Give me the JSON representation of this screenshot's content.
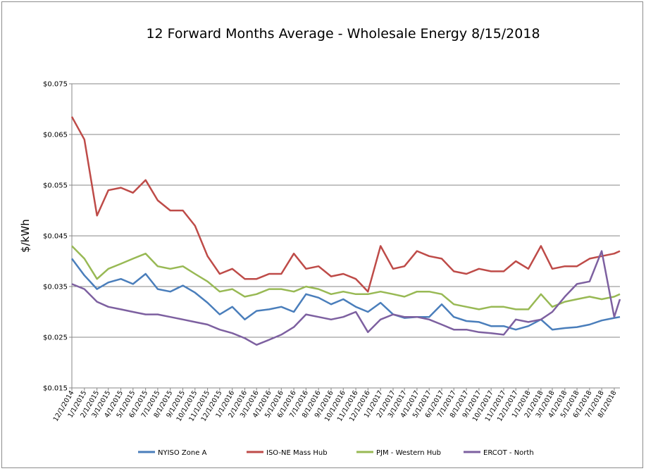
{
  "chart_data": {
    "type": "line",
    "title": "12 Forward Months Average - Wholesale Energy 8/15/2018",
    "ylabel": "$/kWh",
    "xlabel": "",
    "ylim": [
      0.015,
      0.075
    ],
    "yticks": [
      0.075,
      0.065,
      0.055,
      0.045,
      0.035,
      0.025,
      0.015
    ],
    "ytick_labels": [
      "$0.075",
      "$0.065",
      "$0.055",
      "$0.045",
      "$0.035",
      "$0.025",
      "$0.015"
    ],
    "xlim": [
      "2014-12-01",
      "2018-08-15"
    ],
    "xtick_labels": [
      "12/1/2014",
      "1/1/2015",
      "2/1/2015",
      "3/1/2015",
      "4/1/2015",
      "5/1/2015",
      "6/1/2015",
      "7/1/2015",
      "8/1/2015",
      "9/1/2015",
      "10/1/2015",
      "11/1/2015",
      "12/1/2015",
      "1/1/2016",
      "2/1/2016",
      "3/1/2016",
      "4/1/2016",
      "5/1/2016",
      "6/1/2016",
      "7/1/2016",
      "8/1/2016",
      "9/1/2016",
      "10/1/2016",
      "11/1/2016",
      "12/1/2016",
      "1/1/2017",
      "2/1/2017",
      "3/1/2017",
      "4/1/2017",
      "5/1/2017",
      "6/1/2017",
      "7/1/2017",
      "8/1/2017",
      "9/1/2017",
      "10/1/2017",
      "11/1/2017",
      "12/1/2017",
      "1/1/2018",
      "2/1/2018",
      "3/1/2018",
      "4/1/2018",
      "5/1/2018",
      "6/1/2018",
      "7/1/2018",
      "8/1/2018"
    ],
    "x": [
      "2014-12-01",
      "2015-01-01",
      "2015-02-01",
      "2015-03-01",
      "2015-04-01",
      "2015-05-01",
      "2015-06-01",
      "2015-07-01",
      "2015-08-01",
      "2015-09-01",
      "2015-10-01",
      "2015-11-01",
      "2015-12-01",
      "2016-01-01",
      "2016-02-01",
      "2016-03-01",
      "2016-04-01",
      "2016-05-01",
      "2016-06-01",
      "2016-07-01",
      "2016-08-01",
      "2016-09-01",
      "2016-10-01",
      "2016-11-01",
      "2016-12-01",
      "2017-01-01",
      "2017-02-01",
      "2017-03-01",
      "2017-04-01",
      "2017-05-01",
      "2017-06-01",
      "2017-07-01",
      "2017-08-01",
      "2017-09-01",
      "2017-10-01",
      "2017-11-01",
      "2017-12-01",
      "2018-01-01",
      "2018-02-01",
      "2018-03-01",
      "2018-04-01",
      "2018-05-01",
      "2018-06-01",
      "2018-07-01",
      "2018-08-01",
      "2018-08-15"
    ],
    "series": [
      {
        "name": "NYISO Zone A",
        "color": "#4a7ebb",
        "values": [
          0.0405,
          0.0372,
          0.0345,
          0.0358,
          0.0365,
          0.0355,
          0.0375,
          0.0345,
          0.034,
          0.0352,
          0.0338,
          0.0318,
          0.0295,
          0.031,
          0.0285,
          0.0302,
          0.0305,
          0.031,
          0.03,
          0.0335,
          0.0328,
          0.0315,
          0.0325,
          0.031,
          0.03,
          0.0318,
          0.0295,
          0.0288,
          0.029,
          0.029,
          0.0315,
          0.029,
          0.0282,
          0.028,
          0.0272,
          0.0272,
          0.0265,
          0.0272,
          0.0285,
          0.0265,
          0.0268,
          0.027,
          0.0275,
          0.0283,
          0.0288,
          0.029
        ]
      },
      {
        "name": "ISO-NE Mass Hub",
        "color": "#be4b48",
        "values": [
          0.0685,
          0.064,
          0.049,
          0.054,
          0.0545,
          0.0535,
          0.056,
          0.052,
          0.05,
          0.05,
          0.047,
          0.041,
          0.0375,
          0.0385,
          0.0365,
          0.0365,
          0.0375,
          0.0375,
          0.0415,
          0.0385,
          0.039,
          0.037,
          0.0375,
          0.0365,
          0.034,
          0.043,
          0.0385,
          0.039,
          0.042,
          0.041,
          0.0405,
          0.038,
          0.0375,
          0.0385,
          0.038,
          0.038,
          0.04,
          0.0385,
          0.043,
          0.0385,
          0.039,
          0.039,
          0.0405,
          0.041,
          0.0415,
          0.042
        ]
      },
      {
        "name": "PJM - Western Hub",
        "color": "#98b954",
        "values": [
          0.043,
          0.0405,
          0.0365,
          0.0385,
          0.0395,
          0.0405,
          0.0415,
          0.039,
          0.0385,
          0.039,
          0.0375,
          0.036,
          0.034,
          0.0345,
          0.033,
          0.0335,
          0.0345,
          0.0345,
          0.034,
          0.035,
          0.0345,
          0.0335,
          0.034,
          0.0335,
          0.0335,
          0.034,
          0.0335,
          0.033,
          0.034,
          0.034,
          0.0335,
          0.0315,
          0.031,
          0.0305,
          0.031,
          0.031,
          0.0305,
          0.0305,
          0.0335,
          0.031,
          0.032,
          0.0325,
          0.033,
          0.0325,
          0.033,
          0.0335
        ]
      },
      {
        "name": "ERCOT - North",
        "color": "#7d60a0",
        "values": [
          0.0355,
          0.0345,
          0.032,
          0.031,
          0.0305,
          0.03,
          0.0295,
          0.0295,
          0.029,
          0.0285,
          0.028,
          0.0275,
          0.0265,
          0.0258,
          0.0248,
          0.0235,
          0.0245,
          0.0255,
          0.027,
          0.0295,
          0.029,
          0.0285,
          0.029,
          0.03,
          0.026,
          0.0285,
          0.0295,
          0.029,
          0.029,
          0.0285,
          0.0275,
          0.0265,
          0.0265,
          0.026,
          0.0258,
          0.0255,
          0.0285,
          0.028,
          0.0285,
          0.03,
          0.033,
          0.0355,
          0.036,
          0.042,
          0.029,
          0.0325
        ]
      }
    ],
    "legend": {
      "position": "bottom"
    },
    "grid": true
  }
}
